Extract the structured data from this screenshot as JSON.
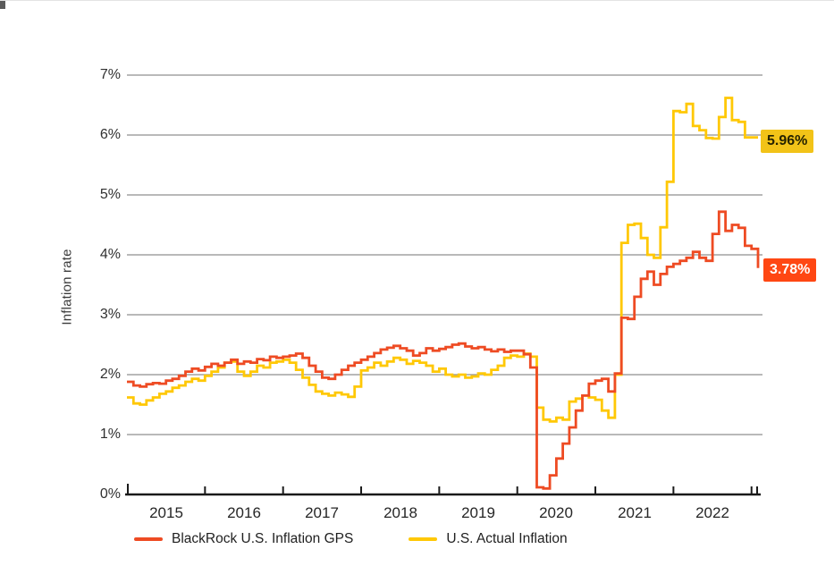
{
  "y_axis": {
    "title": "Inflation rate",
    "tick_labels": [
      "0%",
      "1%",
      "2%",
      "3%",
      "4%",
      "5%",
      "6%",
      "7%"
    ]
  },
  "x_axis": {
    "tick_labels": [
      "2015",
      "2016",
      "2017",
      "2018",
      "2019",
      "2020",
      "2021",
      "2022"
    ]
  },
  "legend": {
    "items": [
      {
        "label": "BlackRock U.S. Inflation GPS",
        "color": "#EE4B23"
      },
      {
        "label": "U.S. Actual Inflation",
        "color": "#FFC805"
      }
    ]
  },
  "badges": {
    "actual": {
      "label": "5.96%",
      "bg": "#F2C318",
      "fg": "#262300"
    },
    "gps": {
      "label": "3.78%",
      "bg": "#FF4713",
      "fg": "#FFFFFF"
    }
  },
  "chart_data": {
    "type": "line",
    "step": true,
    "title": "",
    "xlabel": "",
    "ylabel": "Inflation rate",
    "ylim": [
      0,
      7
    ],
    "xlim_years": [
      2015.0,
      2023.1
    ],
    "x_start_year": 2015,
    "points_per_month": 1,
    "grid": true,
    "grid_color": "#8f8f8f",
    "axis_color": "#1a1a1a",
    "legend_position": "bottom",
    "series": [
      {
        "name": "BlackRock U.S. Inflation GPS",
        "color": "#EE4B23",
        "end_label": "3.78%",
        "values": [
          1.88,
          1.82,
          1.8,
          1.84,
          1.86,
          1.85,
          1.9,
          1.93,
          1.98,
          2.05,
          2.1,
          2.07,
          2.13,
          2.18,
          2.15,
          2.2,
          2.25,
          2.18,
          2.22,
          2.2,
          2.26,
          2.24,
          2.3,
          2.28,
          2.3,
          2.32,
          2.35,
          2.28,
          2.15,
          2.05,
          1.95,
          1.93,
          2.0,
          2.08,
          2.15,
          2.2,
          2.25,
          2.3,
          2.36,
          2.42,
          2.45,
          2.48,
          2.44,
          2.4,
          2.32,
          2.36,
          2.44,
          2.4,
          2.43,
          2.46,
          2.5,
          2.52,
          2.47,
          2.44,
          2.46,
          2.42,
          2.39,
          2.42,
          2.38,
          2.4,
          2.4,
          2.34,
          2.12,
          0.12,
          0.1,
          0.32,
          0.6,
          0.85,
          1.12,
          1.4,
          1.65,
          1.85,
          1.9,
          1.93,
          1.72,
          2.02,
          2.95,
          2.93,
          3.3,
          3.6,
          3.72,
          3.5,
          3.68,
          3.8,
          3.85,
          3.9,
          3.95,
          4.05,
          3.95,
          3.9,
          4.35,
          4.72,
          4.4,
          4.5,
          4.45,
          4.15,
          4.1,
          3.78
        ]
      },
      {
        "name": "U.S. Actual Inflation",
        "color": "#FFC805",
        "end_label": "5.96%",
        "values": [
          1.62,
          1.52,
          1.5,
          1.57,
          1.62,
          1.68,
          1.72,
          1.78,
          1.82,
          1.88,
          1.93,
          1.9,
          1.98,
          2.05,
          2.12,
          2.2,
          2.22,
          2.05,
          1.98,
          2.05,
          2.15,
          2.12,
          2.2,
          2.22,
          2.25,
          2.2,
          2.08,
          1.95,
          1.83,
          1.72,
          1.68,
          1.65,
          1.7,
          1.67,
          1.63,
          1.8,
          2.07,
          2.12,
          2.2,
          2.15,
          2.22,
          2.28,
          2.25,
          2.18,
          2.23,
          2.2,
          2.15,
          2.05,
          2.1,
          2.0,
          1.97,
          2.0,
          1.95,
          1.97,
          2.02,
          2.0,
          2.08,
          2.15,
          2.28,
          2.32,
          2.3,
          2.35,
          2.3,
          1.45,
          1.25,
          1.22,
          1.28,
          1.25,
          1.55,
          1.6,
          1.65,
          1.62,
          1.58,
          1.4,
          1.28,
          2.0,
          4.2,
          4.5,
          4.52,
          4.28,
          4.0,
          3.95,
          4.46,
          5.22,
          6.4,
          6.38,
          6.52,
          6.15,
          6.08,
          5.95,
          5.94,
          6.3,
          6.62,
          6.25,
          6.22,
          5.96,
          5.96,
          5.96
        ]
      }
    ]
  }
}
